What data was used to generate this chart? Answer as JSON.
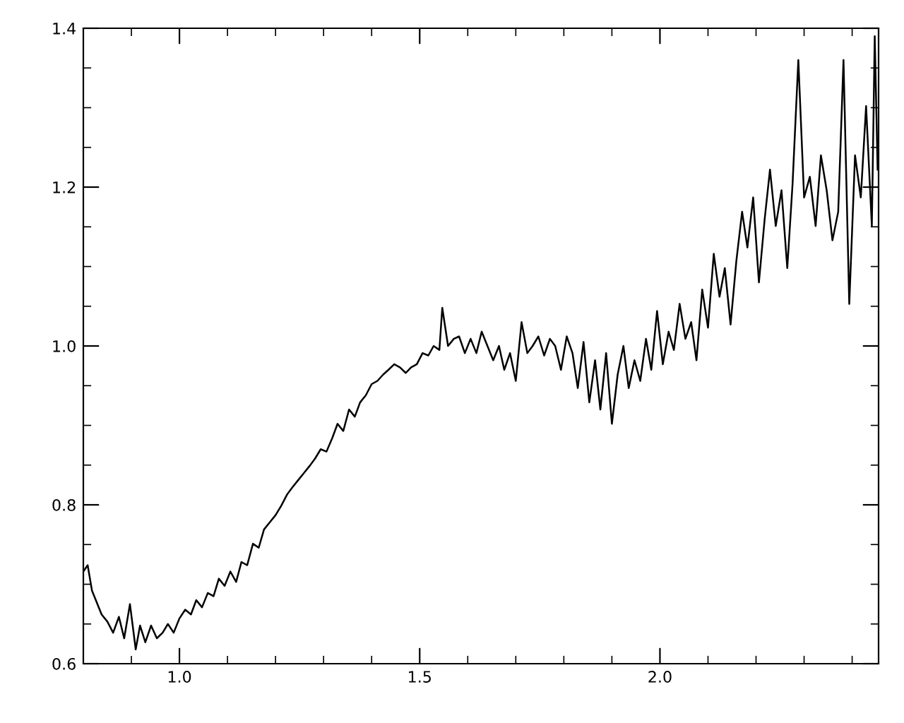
{
  "chart_data": {
    "type": "line",
    "color": "#000000",
    "x": [
      0.8,
      0.809,
      0.818,
      0.826,
      0.838,
      0.85,
      0.862,
      0.874,
      0.885,
      0.897,
      0.909,
      0.918,
      0.929,
      0.941,
      0.953,
      0.965,
      0.976,
      0.988,
      1.0,
      1.012,
      1.024,
      1.035,
      1.047,
      1.059,
      1.071,
      1.082,
      1.094,
      1.106,
      1.118,
      1.129,
      1.141,
      1.153,
      1.165,
      1.176,
      1.188,
      1.2,
      1.212,
      1.224,
      1.235,
      1.247,
      1.259,
      1.271,
      1.282,
      1.294,
      1.306,
      1.318,
      1.329,
      1.341,
      1.353,
      1.365,
      1.376,
      1.388,
      1.4,
      1.412,
      1.424,
      1.435,
      1.447,
      1.459,
      1.471,
      1.482,
      1.494,
      1.506,
      1.518,
      1.529,
      1.541,
      1.547,
      1.559,
      1.571,
      1.582,
      1.594,
      1.606,
      1.618,
      1.629,
      1.641,
      1.653,
      1.665,
      1.676,
      1.688,
      1.7,
      1.712,
      1.724,
      1.735,
      1.747,
      1.759,
      1.771,
      1.782,
      1.794,
      1.806,
      1.818,
      1.829,
      1.841,
      1.853,
      1.865,
      1.876,
      1.888,
      1.9,
      1.912,
      1.924,
      1.935,
      1.947,
      1.959,
      1.971,
      1.982,
      1.994,
      2.006,
      2.018,
      2.029,
      2.041,
      2.053,
      2.065,
      2.076,
      2.088,
      2.1,
      2.112,
      2.124,
      2.135,
      2.147,
      2.159,
      2.171,
      2.182,
      2.194,
      2.206,
      2.218,
      2.229,
      2.241,
      2.253,
      2.265,
      2.276,
      2.288,
      2.3,
      2.312,
      2.324,
      2.335,
      2.347,
      2.359,
      2.371,
      2.382,
      2.394,
      2.406,
      2.418,
      2.429,
      2.441,
      2.447,
      2.453
    ],
    "values": [
      0.716,
      0.724,
      0.692,
      0.68,
      0.662,
      0.653,
      0.639,
      0.659,
      0.632,
      0.675,
      0.618,
      0.648,
      0.627,
      0.648,
      0.632,
      0.639,
      0.65,
      0.639,
      0.657,
      0.668,
      0.662,
      0.68,
      0.671,
      0.689,
      0.685,
      0.707,
      0.698,
      0.716,
      0.703,
      0.728,
      0.724,
      0.751,
      0.746,
      0.769,
      0.778,
      0.787,
      0.799,
      0.813,
      0.822,
      0.831,
      0.84,
      0.849,
      0.858,
      0.87,
      0.867,
      0.884,
      0.902,
      0.893,
      0.92,
      0.911,
      0.929,
      0.938,
      0.952,
      0.956,
      0.964,
      0.97,
      0.977,
      0.973,
      0.966,
      0.973,
      0.977,
      0.991,
      0.988,
      1.0,
      0.995,
      1.048,
      1.0,
      1.009,
      1.012,
      0.991,
      1.009,
      0.991,
      1.018,
      1.0,
      0.982,
      1.0,
      0.97,
      0.991,
      0.956,
      1.03,
      0.991,
      1.0,
      1.012,
      0.988,
      1.009,
      1.0,
      0.97,
      1.012,
      0.991,
      0.947,
      1.005,
      0.929,
      0.982,
      0.92,
      0.991,
      0.902,
      0.964,
      1.0,
      0.947,
      0.982,
      0.956,
      1.009,
      0.97,
      1.044,
      0.977,
      1.018,
      0.995,
      1.053,
      1.009,
      1.03,
      0.982,
      1.071,
      1.023,
      1.116,
      1.062,
      1.098,
      1.027,
      1.107,
      1.169,
      1.124,
      1.187,
      1.08,
      1.16,
      1.222,
      1.151,
      1.196,
      1.098,
      1.204,
      1.36,
      1.187,
      1.213,
      1.151,
      1.24,
      1.196,
      1.133,
      1.169,
      1.36,
      1.053,
      1.24,
      1.187,
      1.302,
      1.151,
      1.39,
      1.222
    ],
    "xlim": [
      0.8,
      2.455
    ],
    "ylim": [
      0.6,
      1.4
    ],
    "xticks": [
      {
        "value": 1.0,
        "label": "1.0"
      },
      {
        "value": 1.5,
        "label": "1.5"
      },
      {
        "value": 2.0,
        "label": "2.0"
      }
    ],
    "yticks": [
      {
        "value": 0.6,
        "label": "0.6"
      },
      {
        "value": 0.8,
        "label": "0.8"
      },
      {
        "value": 1.0,
        "label": "1.0"
      },
      {
        "value": 1.2,
        "label": "1.2"
      },
      {
        "value": 1.4,
        "label": "1.4"
      }
    ],
    "grid": false,
    "line_style": "solid",
    "marker": "none"
  }
}
